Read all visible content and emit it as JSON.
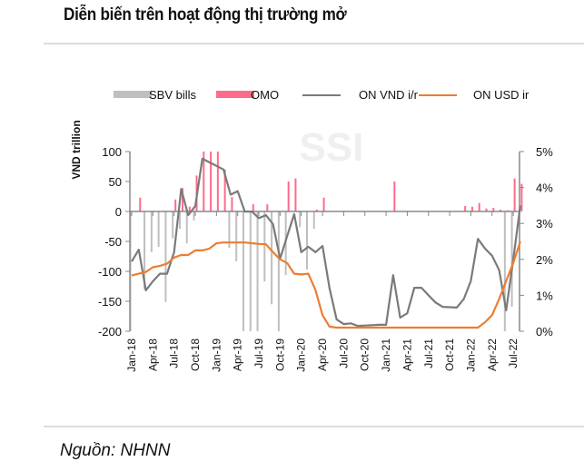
{
  "title": "Diễn biến trên hoạt động thị trường mở",
  "source": "Nguồn: NHNN",
  "watermark": "SSI",
  "colors": {
    "sbv_bills": "#bfbfbf",
    "omo": "#ff6b8a",
    "on_vnd": "#7a7a7a",
    "on_usd": "#ed7d31"
  },
  "chart_data": {
    "type": "bar+line",
    "ylabel": "VND trillion",
    "ylim": [
      -200,
      100
    ],
    "y_ticks": [
      "100",
      "50",
      "0",
      "-50",
      "-100",
      "-150",
      "-200"
    ],
    "y2lim": [
      0,
      5
    ],
    "y2_ticks": [
      "5%",
      "4%",
      "3%",
      "2%",
      "1%",
      "0%"
    ],
    "x_ticks": [
      "Jan-18",
      "Apr-18",
      "Jul-18",
      "Oct-18",
      "Jan-19",
      "Apr-19",
      "Jul-19",
      "Oct-19",
      "Jan-20",
      "Apr-20",
      "Jul-20",
      "Oct-20",
      "Jan-21",
      "Apr-21",
      "Jul-21",
      "Oct-21",
      "Jan-22",
      "Apr-22",
      "Jul-22"
    ],
    "legend": [
      "SBV bills",
      "OMO",
      "ON VND i/r",
      "ON USD ir"
    ],
    "legend_position": "top",
    "grid": false,
    "x": [
      "2018-01",
      "2018-02",
      "2018-03",
      "2018-04",
      "2018-05",
      "2018-06",
      "2018-07",
      "2018-08",
      "2018-09",
      "2018-10",
      "2018-11",
      "2018-12",
      "2019-01",
      "2019-02",
      "2019-03",
      "2019-04",
      "2019-05",
      "2019-06",
      "2019-07",
      "2019-08",
      "2019-09",
      "2019-10",
      "2019-11",
      "2019-12",
      "2020-01",
      "2020-02",
      "2020-03",
      "2020-04",
      "2020-05",
      "2020-06",
      "2020-07",
      "2020-08",
      "2020-09",
      "2020-10",
      "2020-11",
      "2020-12",
      "2021-01",
      "2021-02",
      "2021-03",
      "2021-04",
      "2021-05",
      "2021-06",
      "2021-07",
      "2021-08",
      "2021-09",
      "2021-10",
      "2021-11",
      "2021-12",
      "2022-01",
      "2022-02",
      "2022-03",
      "2022-04",
      "2022-05",
      "2022-06",
      "2022-07",
      "2022-08"
    ],
    "series": [
      {
        "name": "ON VND i/r",
        "axis": "right",
        "type": "line",
        "values": [
          1.94,
          2.27,
          1.14,
          1.39,
          1.6,
          1.6,
          2.2,
          3.96,
          3.23,
          3.48,
          4.8,
          4.7,
          4.6,
          4.5,
          3.8,
          3.9,
          3.33,
          3.33,
          3.15,
          3.23,
          2.98,
          2.02,
          2.65,
          3.26,
          2.2,
          2.35,
          2.2,
          2.37,
          1.2,
          0.33,
          0.2,
          0.22,
          0.15,
          0.16,
          0.17,
          0.18,
          0.18,
          1.56,
          0.38,
          0.5,
          1.21,
          1.21,
          1.0,
          0.8,
          0.68,
          0.67,
          0.66,
          0.9,
          1.4,
          2.57,
          2.3,
          2.1,
          1.7,
          0.58,
          2.0,
          3.5
        ]
      },
      {
        "name": "ON USD ir",
        "axis": "right",
        "type": "line",
        "values": [
          1.55,
          1.6,
          1.65,
          1.78,
          1.82,
          1.88,
          2.05,
          2.12,
          2.12,
          2.25,
          2.25,
          2.3,
          2.45,
          2.47,
          2.47,
          2.47,
          2.47,
          2.45,
          2.43,
          2.42,
          2.2,
          2.0,
          1.9,
          1.6,
          1.58,
          1.6,
          1.15,
          0.45,
          0.13,
          0.1,
          0.1,
          0.1,
          0.1,
          0.1,
          0.1,
          0.1,
          0.1,
          0.1,
          0.1,
          0.1,
          0.1,
          0.1,
          0.1,
          0.1,
          0.1,
          0.1,
          0.1,
          0.1,
          0.1,
          0.1,
          0.25,
          0.45,
          0.9,
          1.4,
          1.9,
          2.5
        ]
      },
      {
        "name": "SBV bills",
        "axis": "left",
        "type": "bar",
        "points": [
          {
            "x": "2018-01",
            "y": -200
          },
          {
            "x": "2018-03",
            "y": -130
          },
          {
            "x": "2018-04",
            "y": -68
          },
          {
            "x": "2018-05",
            "y": -59
          },
          {
            "x": "2018-06",
            "y": -151
          },
          {
            "x": "2018-07",
            "y": -45
          },
          {
            "x": "2018-08",
            "y": -29
          },
          {
            "x": "2018-09",
            "y": -53
          },
          {
            "x": "2018-10",
            "y": -15
          },
          {
            "x": "2019-03",
            "y": -61
          },
          {
            "x": "2019-04",
            "y": -83
          },
          {
            "x": "2019-05",
            "y": -200
          },
          {
            "x": "2019-06",
            "y": -200
          },
          {
            "x": "2019-07",
            "y": -200
          },
          {
            "x": "2019-08",
            "y": -117
          },
          {
            "x": "2019-09",
            "y": -155
          },
          {
            "x": "2019-10",
            "y": -200
          },
          {
            "x": "2019-11",
            "y": -106
          },
          {
            "x": "2020-01",
            "y": -26
          },
          {
            "x": "2020-02",
            "y": -97
          },
          {
            "x": "2020-03",
            "y": -29
          },
          {
            "x": "2022-06",
            "y": -200
          },
          {
            "x": "2022-07",
            "y": -159
          }
        ]
      },
      {
        "name": "OMO",
        "axis": "left",
        "type": "bar",
        "points": [
          {
            "x": "2018-02",
            "y": 23
          },
          {
            "x": "2018-07",
            "y": 20
          },
          {
            "x": "2018-08",
            "y": 39
          },
          {
            "x": "2018-09",
            "y": 8
          },
          {
            "x": "2018-10",
            "y": 60
          },
          {
            "x": "2018-11",
            "y": 100
          },
          {
            "x": "2018-12",
            "y": 100
          },
          {
            "x": "2019-01",
            "y": 100
          },
          {
            "x": "2019-02",
            "y": 70
          },
          {
            "x": "2019-03",
            "y": 24
          },
          {
            "x": "2019-06",
            "y": 12
          },
          {
            "x": "2019-08",
            "y": 12
          },
          {
            "x": "2019-11",
            "y": 50
          },
          {
            "x": "2019-12",
            "y": 55
          },
          {
            "x": "2020-03",
            "y": 3
          },
          {
            "x": "2020-04",
            "y": 23
          },
          {
            "x": "2021-02",
            "y": 50
          },
          {
            "x": "2021-12",
            "y": 9
          },
          {
            "x": "2022-01",
            "y": 8
          },
          {
            "x": "2022-02",
            "y": 14
          },
          {
            "x": "2022-03",
            "y": 5
          },
          {
            "x": "2022-04",
            "y": 6
          },
          {
            "x": "2022-05",
            "y": 3
          },
          {
            "x": "2022-06",
            "y": 2
          },
          {
            "x": "2022-07",
            "y": 55
          },
          {
            "x": "2022-08",
            "y": 46
          }
        ]
      }
    ]
  }
}
